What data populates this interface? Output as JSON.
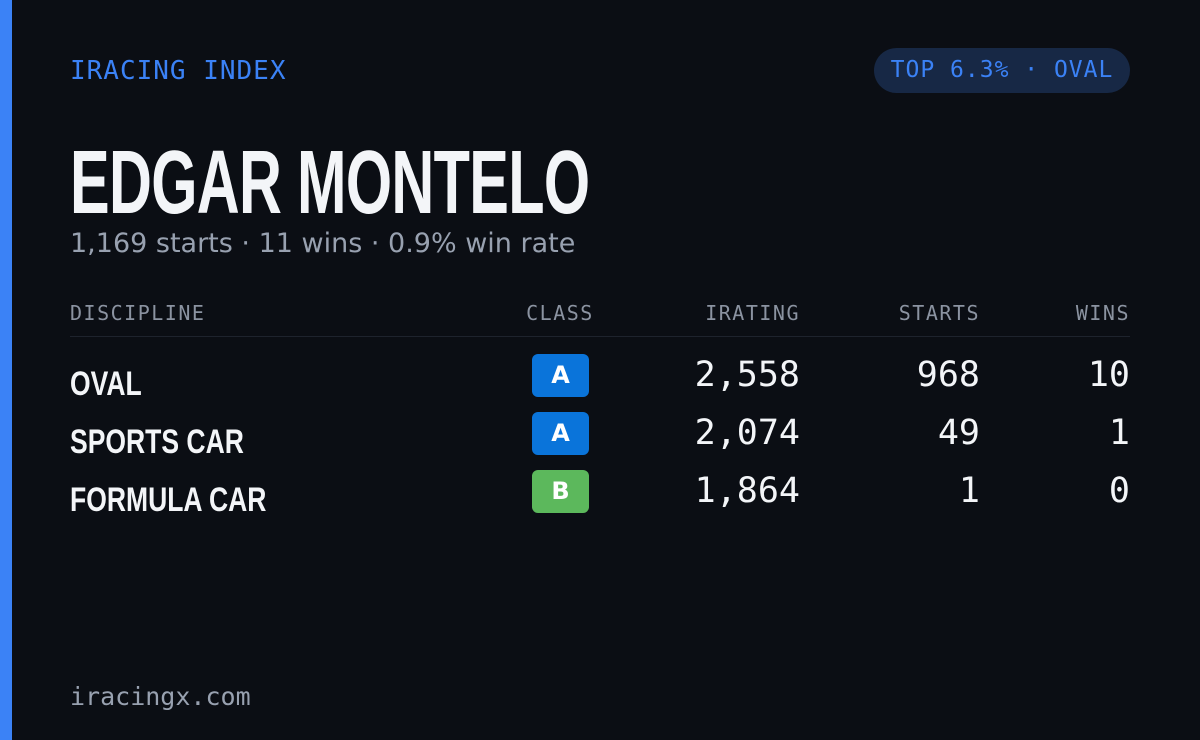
{
  "header": {
    "brand": "IRACING INDEX",
    "badge": "TOP 6.3% · OVAL"
  },
  "name": "EDGAR MONTELO",
  "summary": "1,169 starts · 11 wins · 0.9% win rate",
  "table": {
    "columns": [
      "DISCIPLINE",
      "CLASS",
      "IRATING",
      "STARTS",
      "WINS"
    ],
    "rows": [
      {
        "discipline": "OVAL",
        "class": "A",
        "class_color": "#0a74da",
        "irating": "2,558",
        "starts": "968",
        "wins": "10"
      },
      {
        "discipline": "SPORTS CAR",
        "class": "A",
        "class_color": "#0a74da",
        "irating": "2,074",
        "starts": "49",
        "wins": "1"
      },
      {
        "discipline": "FORMULA CAR",
        "class": "B",
        "class_color": "#5cb85c",
        "irating": "1,864",
        "starts": "1",
        "wins": "0"
      }
    ]
  },
  "footer": "iracingx.com"
}
